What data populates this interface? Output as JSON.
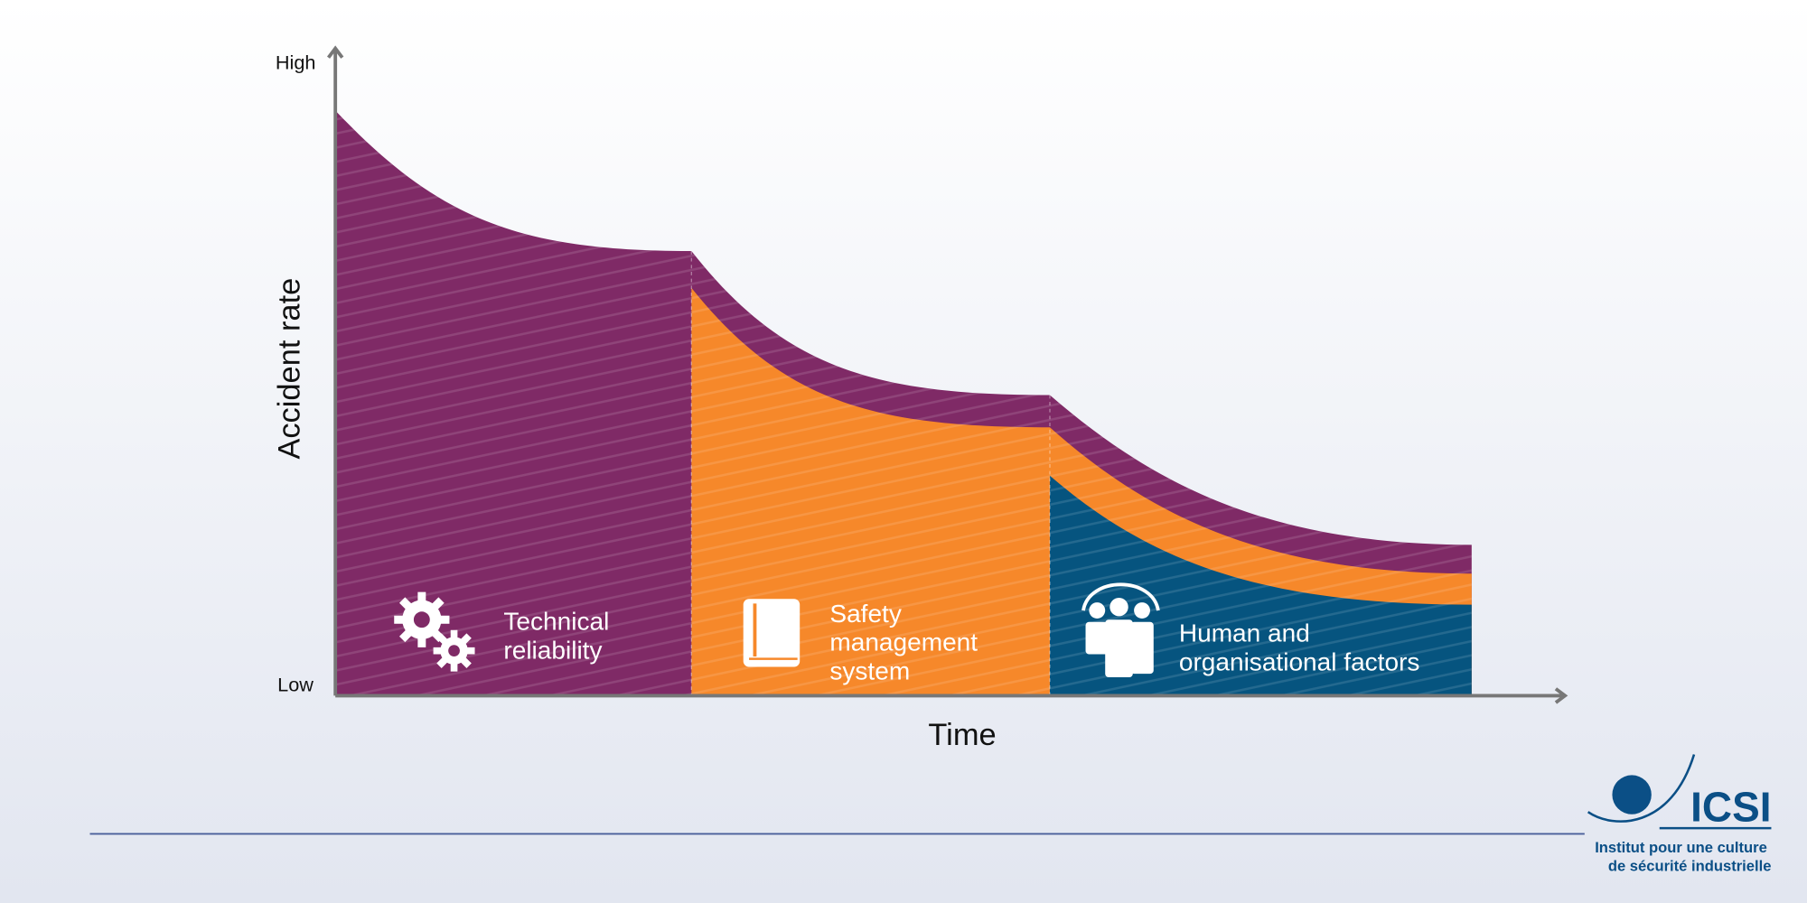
{
  "axis": {
    "y_high": "High",
    "y_low": "Low",
    "y_label": "Accident rate",
    "x_label": "Time"
  },
  "segments": [
    {
      "lines": [
        "Technical",
        "reliability"
      ]
    },
    {
      "lines": [
        "Safety",
        "management",
        "system"
      ]
    },
    {
      "lines": [
        "Human and",
        "organisational factors"
      ]
    }
  ],
  "logo": {
    "name": "ICSI",
    "lines": [
      "Institut pour une culture",
      "de sécurité industrielle"
    ]
  }
}
